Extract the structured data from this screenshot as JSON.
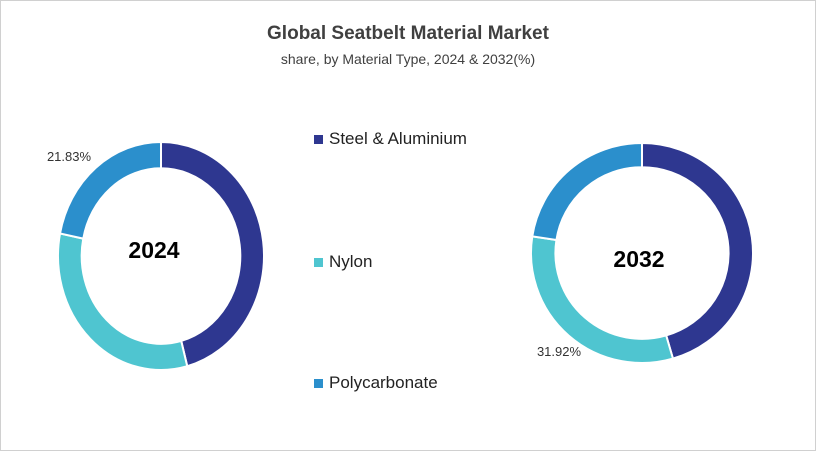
{
  "chart_data": [
    {
      "type": "pie",
      "donut": true,
      "center_label": "2024",
      "categories": [
        "Steel & Aluminium",
        "Nylon",
        "Polycarbonate"
      ],
      "values": [
        45.9,
        32.27,
        21.83
      ],
      "data_labels": {
        "Polycarbonate": "21.83%"
      }
    },
    {
      "type": "pie",
      "donut": true,
      "center_label": "2032",
      "categories": [
        "Steel & Aluminium",
        "Nylon",
        "Polycarbonate"
      ],
      "values": [
        45.5,
        31.92,
        22.58
      ],
      "data_labels": {
        "Nylon": "31.92%"
      }
    }
  ],
  "title": "Global Seatbelt Material Market",
  "subtitle": "share, by Material Type, 2024 & 2032(%)",
  "legend": {
    "placement": "center",
    "items": [
      "Steel & Aluminium",
      "Nylon",
      "Polycarbonate"
    ]
  },
  "colors": {
    "Steel & Aluminium": "#2e3790",
    "Nylon": "#4fc5d0",
    "Polycarbonate": "#2b8fcc"
  }
}
